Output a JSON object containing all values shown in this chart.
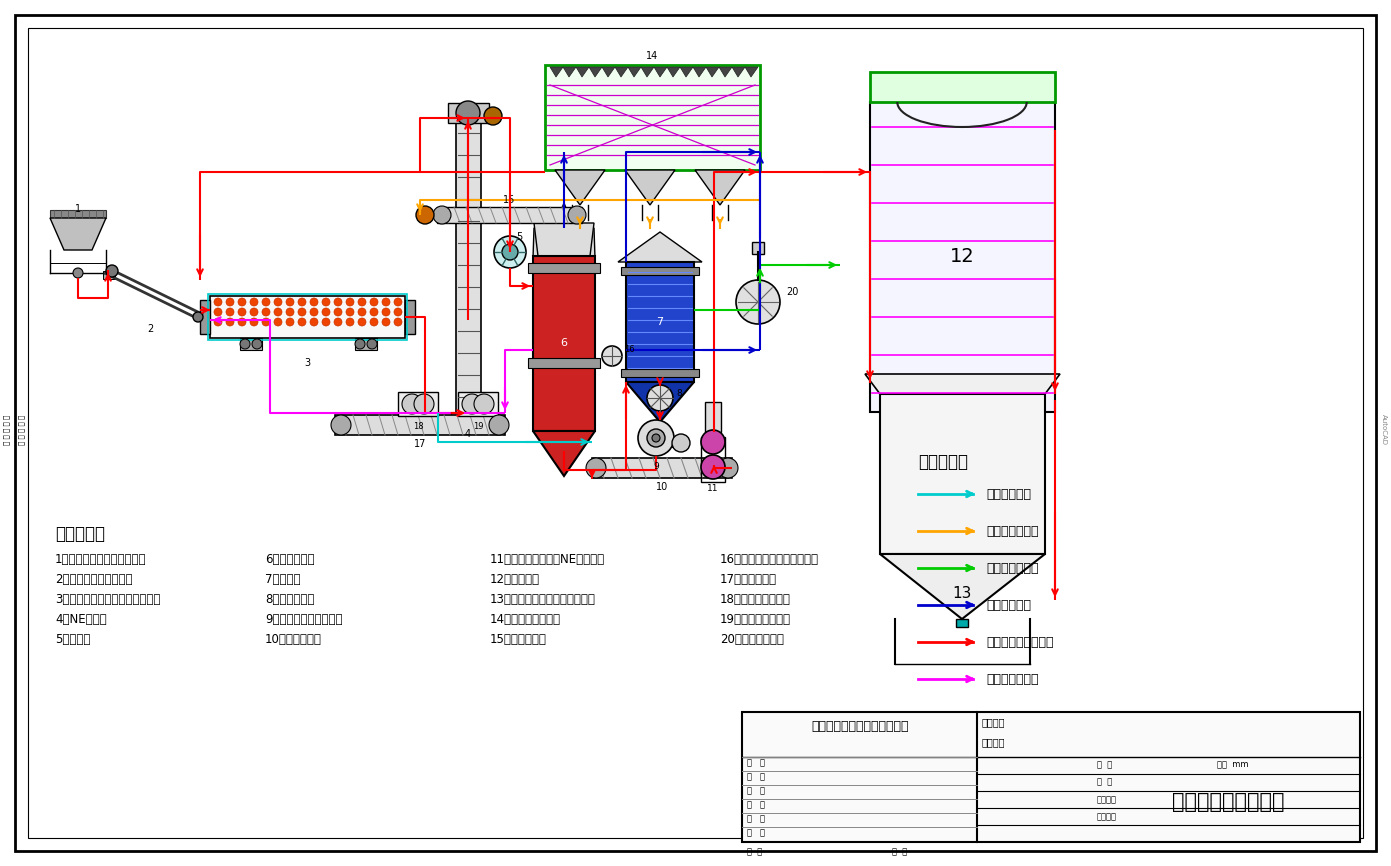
{
  "title": "石膏粉生产线流程图",
  "company": "枣庄市启航机械制造有限公司",
  "bg_color": "#ffffff",
  "legend_title": "箭头说明：",
  "legend_items": [
    {
      "label": "罗茨风机路径",
      "color": "#00CCCC"
    },
    {
      "label": "除尘器回料路径",
      "color": "#FFA500"
    },
    {
      "label": "冷却器热风路径",
      "color": "#00CC00"
    },
    {
      "label": "排湿除尘路径",
      "color": "#0000CC"
    },
    {
      "label": "石膏粉顺序加工路径",
      "color": "#FF0000"
    },
    {
      "label": "煅烧炉回料路径",
      "color": "#FF00FF"
    }
  ],
  "sequence_title": "序号名称：",
  "sequence_col1": [
    "1、上料斗，皮带秤、破碎筛",
    "2、皮带输送机、除铁器",
    "3、混合干燥机（或桨叶干燥机）",
    "4、NE提升机",
    "5、打散机"
  ],
  "sequence_col2": [
    "6、石膏煅烧炉",
    "7、冷却器",
    "8、星型卸料器",
    "9、环磨机（或针磨机）",
    "10、螺旋输送机"
  ],
  "sequence_col3": [
    "11、气流输送机（或NE提升机）",
    "12、成品料仓",
    "13、包装（袋装、吨包、散装）",
    "14、脉冲布袋除尘器",
    "15、螺旋输送机"
  ],
  "sequence_col4": [
    "16、回料控制阀、星型卸料器",
    "17、螺旋输送机",
    "18、煅烧炉罗茨风机",
    "19、冷却器罗茨风机",
    "20、冷却器引风机"
  ]
}
